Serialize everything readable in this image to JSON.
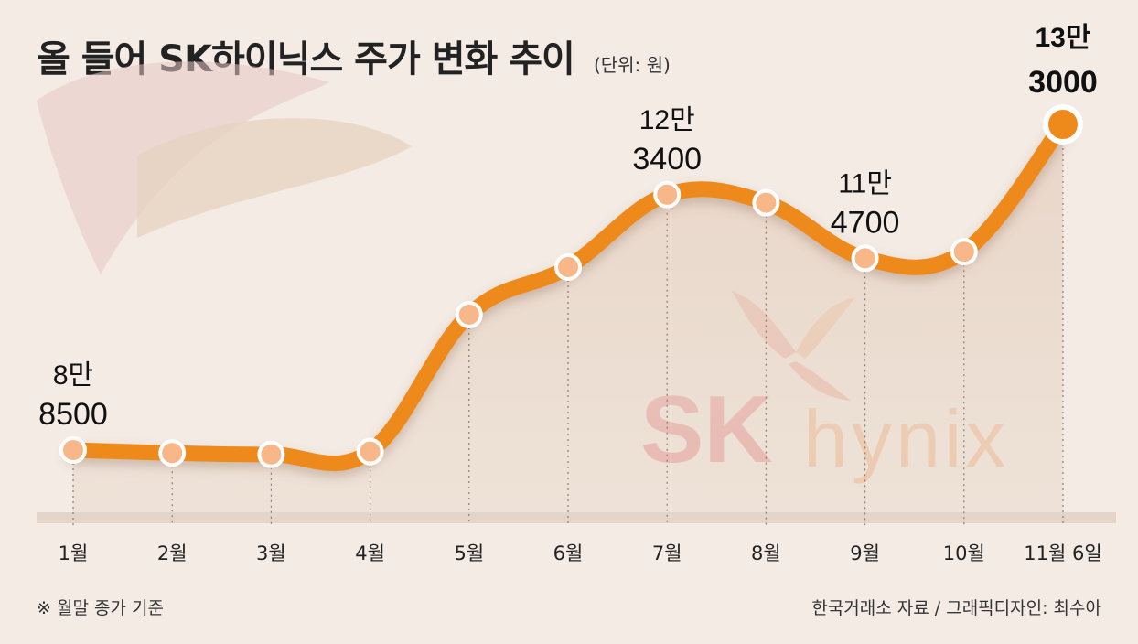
{
  "header": {
    "title": "올 들어 SK하이닉스 주가 변화 추이",
    "unit": "(단위: 원)"
  },
  "footer": {
    "note": "※ 월말 종가 기준",
    "source": "한국거래소 자료 / 그래픽디자인: 최수아"
  },
  "watermark": {
    "brand": "SK",
    "name": "hynix"
  },
  "colors": {
    "line": "#ee8a1c",
    "marker_fill": "#f7b788",
    "marker_stroke": "#ffffff",
    "background": "#f3ebe4",
    "text": "#222222"
  },
  "chart_data": {
    "type": "line",
    "title": "올 들어 SK하이닉스 주가 변화 추이",
    "unit": "(단위: 원)",
    "categories": [
      "1월",
      "2월",
      "3월",
      "4월",
      "5월",
      "6월",
      "7월",
      "8월",
      "9월",
      "10월",
      "11월 6일"
    ],
    "series": [
      {
        "values": [
          88500,
          88100,
          87900,
          88300,
          107000,
          113500,
          123400,
          122300,
          114700,
          115600,
          133000
        ]
      }
    ],
    "ylim": [
      70000,
      140000
    ],
    "grid": false,
    "annotations": [
      {
        "index": 0,
        "line1": "8만",
        "line2": "8500"
      },
      {
        "index": 6,
        "line1": "12만",
        "line2": "3400"
      },
      {
        "index": 8,
        "line1": "11만",
        "line2": "4700"
      },
      {
        "index": 10,
        "line1": "13만",
        "line2": "3000"
      }
    ]
  }
}
